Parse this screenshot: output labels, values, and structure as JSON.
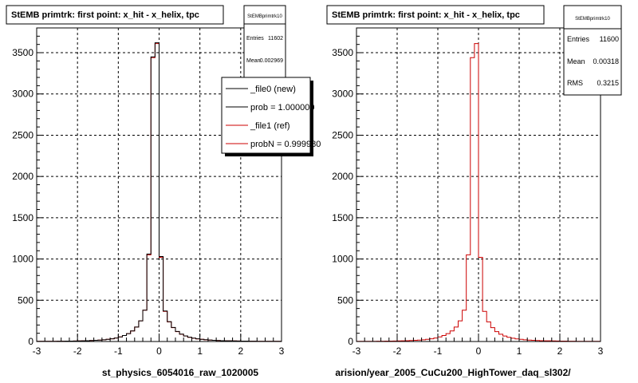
{
  "colors": {
    "new_line": "#000000",
    "ref_line": "#cc0000",
    "grid": "#000000",
    "background": "#ffffff"
  },
  "chart_data": [
    {
      "type": "line",
      "title": "StEMB primtrk: first point: x_hit - x_helix, tpc",
      "xlabel": "st_physics_6054016_raw_1020005",
      "ylabel": "",
      "xlim": [
        -3,
        3
      ],
      "ylim": [
        0,
        3800
      ],
      "xticks": [
        "-3",
        "-2",
        "-1",
        "0",
        "1",
        "2",
        "3"
      ],
      "yticks": [
        "0",
        "500",
        "1000",
        "1500",
        "2000",
        "2500",
        "3000",
        "3500"
      ],
      "grid": true,
      "x": [
        -3.0,
        -2.9,
        -2.8,
        -2.7,
        -2.6,
        -2.5,
        -2.4,
        -2.3,
        -2.2,
        -2.1,
        -2.0,
        -1.9,
        -1.8,
        -1.7,
        -1.6,
        -1.5,
        -1.4,
        -1.3,
        -1.2,
        -1.1,
        -1.0,
        -0.9,
        -0.8,
        -0.7,
        -0.6,
        -0.5,
        -0.4,
        -0.3,
        -0.2,
        -0.1,
        0.0,
        0.1,
        0.2,
        0.3,
        0.4,
        0.5,
        0.6,
        0.7,
        0.8,
        0.9,
        1.0,
        1.1,
        1.2,
        1.3,
        1.4,
        1.5,
        1.6,
        1.7,
        1.8,
        1.9,
        2.0,
        2.1,
        2.2,
        2.3,
        2.4,
        2.5,
        2.6,
        2.7,
        2.8,
        2.9
      ],
      "series": [
        {
          "name": "_file0 (new)",
          "values": [
            2,
            2,
            3,
            3,
            3,
            4,
            4,
            5,
            5,
            6,
            7,
            8,
            10,
            12,
            14,
            17,
            21,
            26,
            33,
            42,
            55,
            72,
            95,
            128,
            175,
            250,
            380,
            1060,
            3450,
            3620,
            1030,
            370,
            240,
            170,
            122,
            90,
            68,
            52,
            41,
            33,
            27,
            22,
            18,
            15,
            12,
            10,
            9,
            8,
            7,
            6,
            5,
            5,
            4,
            4,
            3,
            3,
            3,
            2,
            2,
            2
          ]
        },
        {
          "name": "_file1 (ref)",
          "values": [
            2,
            2,
            3,
            3,
            3,
            4,
            4,
            5,
            5,
            6,
            7,
            8,
            10,
            12,
            14,
            17,
            21,
            26,
            33,
            42,
            55,
            72,
            95,
            128,
            175,
            250,
            380,
            1050,
            3440,
            3610,
            1020,
            365,
            238,
            168,
            120,
            88,
            67,
            51,
            40,
            32,
            26,
            21,
            17,
            14,
            12,
            10,
            9,
            8,
            7,
            6,
            5,
            5,
            4,
            4,
            3,
            3,
            3,
            2,
            2,
            2
          ]
        }
      ],
      "stats": {
        "name": "StEMBprimtrk10",
        "entries_label": "Entries",
        "entries": "11602",
        "mean_label": "Mean",
        "mean": "0.002969"
      },
      "legend": {
        "placement": "top-right",
        "entries": [
          {
            "label": "_file0 (new)",
            "color": "#000000"
          },
          {
            "label": "prob = 1.000000",
            "color": "#000000"
          },
          {
            "label": "_file1 (ref)",
            "color": "#cc0000"
          },
          {
            "label": "probN = 0.999980",
            "color": "#cc0000"
          }
        ]
      }
    },
    {
      "type": "line",
      "title": "StEMB primtrk: first point: x_hit - x_helix, tpc",
      "xlabel": "arision/year_2005_CuCu200_HighTower_daq_sl302/",
      "ylabel": "",
      "xlim": [
        -3,
        3
      ],
      "ylim": [
        0,
        3800
      ],
      "xticks": [
        "-3",
        "-2",
        "-1",
        "0",
        "1",
        "2",
        "3"
      ],
      "yticks": [
        "0",
        "500",
        "1000",
        "1500",
        "2000",
        "2500",
        "3000",
        "3500"
      ],
      "grid": true,
      "x": [
        -3.0,
        -2.9,
        -2.8,
        -2.7,
        -2.6,
        -2.5,
        -2.4,
        -2.3,
        -2.2,
        -2.1,
        -2.0,
        -1.9,
        -1.8,
        -1.7,
        -1.6,
        -1.5,
        -1.4,
        -1.3,
        -1.2,
        -1.1,
        -1.0,
        -0.9,
        -0.8,
        -0.7,
        -0.6,
        -0.5,
        -0.4,
        -0.3,
        -0.2,
        -0.1,
        0.0,
        0.1,
        0.2,
        0.3,
        0.4,
        0.5,
        0.6,
        0.7,
        0.8,
        0.9,
        1.0,
        1.1,
        1.2,
        1.3,
        1.4,
        1.5,
        1.6,
        1.7,
        1.8,
        1.9,
        2.0,
        2.1,
        2.2,
        2.3,
        2.4,
        2.5,
        2.6,
        2.7,
        2.8,
        2.9
      ],
      "series": [
        {
          "name": "",
          "values": [
            2,
            2,
            3,
            3,
            3,
            4,
            4,
            5,
            5,
            6,
            7,
            8,
            10,
            12,
            14,
            17,
            21,
            26,
            33,
            42,
            55,
            72,
            95,
            128,
            175,
            250,
            380,
            1050,
            3440,
            3610,
            1020,
            365,
            238,
            168,
            120,
            88,
            67,
            51,
            40,
            32,
            26,
            21,
            17,
            14,
            12,
            10,
            9,
            8,
            7,
            6,
            5,
            5,
            4,
            4,
            3,
            3,
            3,
            2,
            2,
            2
          ]
        }
      ],
      "stats": {
        "name": "StEMBprimtrk10",
        "entries_label": "Entries",
        "entries": "11600",
        "mean_label": "Mean",
        "mean": "0.00318",
        "rms_label": "RMS",
        "rms": "0.3215"
      }
    }
  ],
  "footer_text": ""
}
